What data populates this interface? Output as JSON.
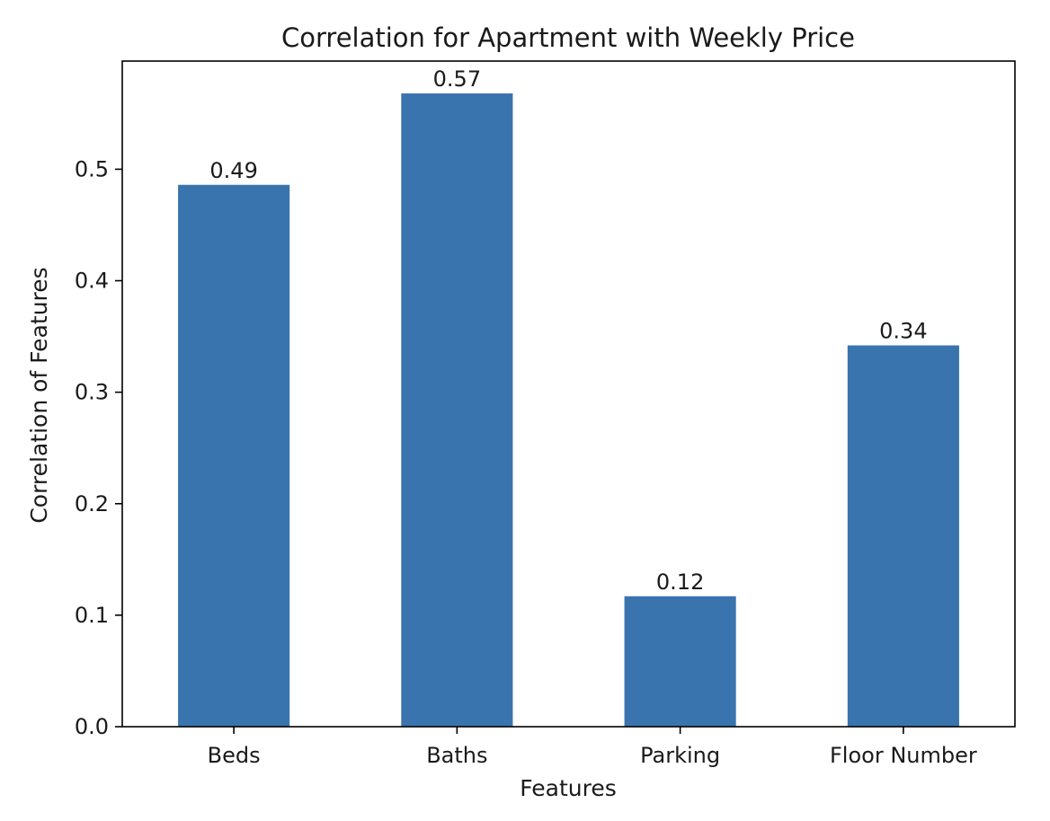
{
  "chart_data": {
    "type": "bar",
    "title": "Correlation for Apartment with Weekly Price",
    "xlabel": "Features",
    "ylabel": "Correlation of Features",
    "categories": [
      "Beds",
      "Baths",
      "Parking",
      "Floor Number"
    ],
    "values": [
      0.486,
      0.568,
      0.117,
      0.342
    ],
    "data_labels": [
      "0.49",
      "0.57",
      "0.12",
      "0.34"
    ],
    "ylim": [
      0,
      0.597
    ],
    "yticks": [
      0.0,
      0.1,
      0.2,
      0.3,
      0.4,
      0.5
    ],
    "ytick_labels": [
      "0.0",
      "0.1",
      "0.2",
      "0.3",
      "0.4",
      "0.5"
    ],
    "bar_color": "#3a74ae",
    "grid": false,
    "legend": false
  }
}
